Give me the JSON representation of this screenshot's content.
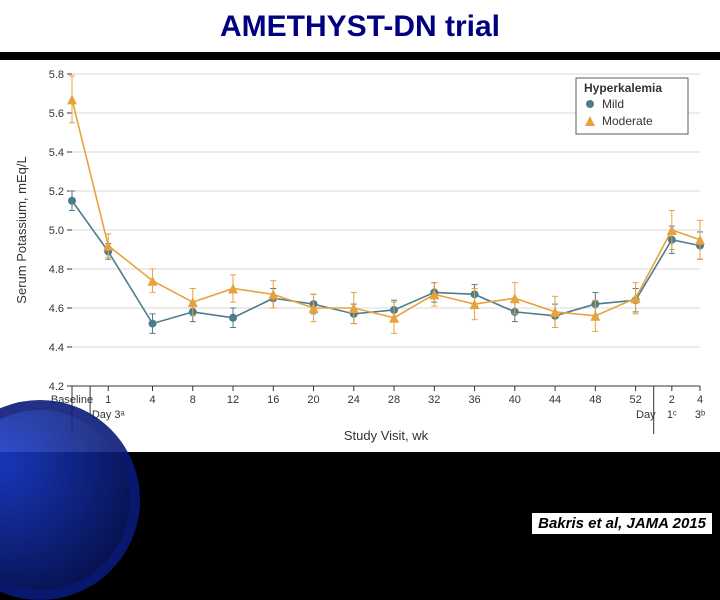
{
  "slide": {
    "title": "AMETHYST-DN trial",
    "title_color": "#000080",
    "title_fontsize": 30,
    "citation": "Bakris et al, JAMA 2015",
    "background": "#000000"
  },
  "chart": {
    "type": "line",
    "background_color": "#ffffff",
    "grid_color": "#d9d9d9",
    "ylabel": "Serum Potassium, mEq/L",
    "xlabel": "Study Visit, wk",
    "ylim": [
      4.2,
      5.8
    ],
    "yticks": [
      4.2,
      4.4,
      4.6,
      4.8,
      5.0,
      5.2,
      5.4,
      5.6,
      5.8
    ],
    "xlabels": [
      "Baseline",
      "1",
      "4",
      "8",
      "12",
      "16",
      "20",
      "24",
      "28",
      "32",
      "36",
      "40",
      "44",
      "48",
      "52",
      "2",
      "4"
    ],
    "xlabels_sub": [
      "",
      "Day 3ᵃ",
      "",
      "",
      "",
      "",
      "",
      "",
      "",
      "",
      "",
      "",
      "",
      "",
      "",
      "1ᶜ",
      "3ᵇ"
    ],
    "x_sub_prefix": [
      "",
      "",
      "",
      "",
      "",
      "",
      "",
      "",
      "",
      "",
      "",
      "",
      "",
      "",
      "",
      "Day",
      ""
    ],
    "x_positions": [
      0,
      0.9,
      2.0,
      3.0,
      4.0,
      5.0,
      6.0,
      7.0,
      8.0,
      9.0,
      10.0,
      11.0,
      12.0,
      13.0,
      14.0,
      14.9,
      15.6
    ],
    "x_divider_after_index": 14,
    "label_fontsize": 13,
    "tick_fontsize": 11,
    "legend": {
      "title": "Hyperkalemia",
      "items": [
        {
          "label": "Mild",
          "marker": "circle",
          "color": "#4d7d8c"
        },
        {
          "label": "Moderate",
          "marker": "triangle",
          "color": "#e8a23d"
        }
      ],
      "border_color": "#333333"
    },
    "series": [
      {
        "name": "Mild",
        "color": "#4d7d8c",
        "marker": "circle",
        "line_width": 1.6,
        "marker_size": 4,
        "values": [
          5.15,
          4.89,
          4.52,
          4.58,
          4.55,
          4.65,
          4.62,
          4.57,
          4.59,
          4.68,
          4.67,
          4.58,
          4.56,
          4.62,
          4.64,
          4.95,
          4.92
        ],
        "err_low": [
          0.05,
          0.04,
          0.05,
          0.05,
          0.05,
          0.05,
          0.05,
          0.05,
          0.05,
          0.05,
          0.05,
          0.05,
          0.06,
          0.06,
          0.06,
          0.07,
          0.07
        ],
        "err_high": [
          0.05,
          0.04,
          0.05,
          0.05,
          0.05,
          0.05,
          0.05,
          0.05,
          0.05,
          0.05,
          0.05,
          0.05,
          0.06,
          0.06,
          0.06,
          0.07,
          0.07
        ]
      },
      {
        "name": "Moderate",
        "color": "#e8a23d",
        "marker": "triangle",
        "line_width": 1.6,
        "marker_size": 5,
        "values": [
          5.67,
          4.92,
          4.74,
          4.63,
          4.7,
          4.67,
          4.6,
          4.6,
          4.55,
          4.67,
          4.62,
          4.65,
          4.58,
          4.56,
          4.65,
          5.0,
          4.95
        ],
        "err_low": [
          0.12,
          0.06,
          0.06,
          0.07,
          0.07,
          0.07,
          0.07,
          0.08,
          0.08,
          0.06,
          0.08,
          0.08,
          0.08,
          0.08,
          0.08,
          0.1,
          0.1
        ],
        "err_high": [
          0.12,
          0.06,
          0.06,
          0.07,
          0.07,
          0.07,
          0.07,
          0.08,
          0.08,
          0.06,
          0.08,
          0.08,
          0.08,
          0.08,
          0.08,
          0.1,
          0.1
        ]
      }
    ]
  }
}
